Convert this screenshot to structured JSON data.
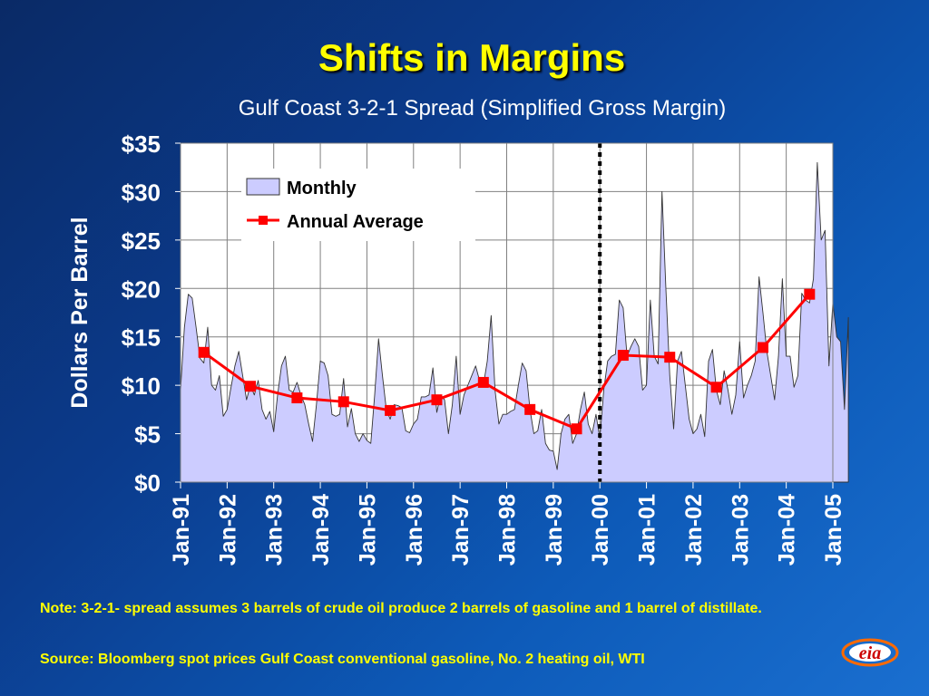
{
  "slide": {
    "title": "Shifts in Margins",
    "subtitle": "Gulf Coast 3-2-1 Spread (Simplified Gross Margin)",
    "note": "Note: 3-2-1- spread assumes 3 barrels of crude oil produce 2 barrels of gasoline and 1 barrel of distillate.",
    "source": "Source: Bloomberg spot prices Gulf Coast conventional gasoline, No. 2 heating oil, WTI",
    "logo_text": "eia"
  },
  "colors": {
    "background": "#0b3b8c",
    "title": "#ffff00",
    "area_fill": "#ccccff",
    "annual_line": "#ff0000",
    "divider": "#000000"
  },
  "chart_data": {
    "type": "area",
    "ylabel": "Dollars Per Barrel",
    "ylim": [
      0,
      35
    ],
    "yticks": [
      0,
      5,
      10,
      15,
      20,
      25,
      30,
      35
    ],
    "ytick_labels": [
      "$0",
      "$5",
      "$10",
      "$15",
      "$20",
      "$25",
      "$30",
      "$35"
    ],
    "xticks": [
      "Jan-91",
      "Jan-92",
      "Jan-93",
      "Jan-94",
      "Jan-95",
      "Jan-96",
      "Jan-97",
      "Jan-98",
      "Jan-99",
      "Jan-00",
      "Jan-01",
      "Jan-02",
      "Jan-03",
      "Jan-04",
      "Jan-05"
    ],
    "grid": true,
    "legend_position": "top-left",
    "divider_at": "Jan-00",
    "series": [
      {
        "name": "Monthly",
        "type": "area",
        "start": "Jan-91",
        "values": [
          9.5,
          16,
          19.4,
          19,
          16,
          12.8,
          12.3,
          16,
          10,
          9.5,
          11,
          6.8,
          7.5,
          9.8,
          12,
          13.5,
          11,
          8.5,
          10,
          9,
          10.5,
          7.5,
          6.5,
          7.3,
          5.2,
          9,
          12,
          13,
          9.5,
          9.3,
          10.3,
          9,
          8,
          6,
          4.2,
          8,
          12.5,
          12.3,
          11,
          7,
          6.8,
          7,
          10.7,
          5.7,
          7.6,
          5,
          4.2,
          5,
          4.3,
          4,
          9,
          14.8,
          11,
          7.5,
          6.5,
          8,
          7.9,
          7.7,
          5.3,
          5.1,
          6,
          6.5,
          8.8,
          8.8,
          9,
          11.8,
          7.2,
          9,
          8.5,
          5,
          8,
          13,
          7,
          9,
          10,
          11,
          12,
          10.5,
          10,
          12.5,
          17.2,
          9.5,
          6,
          7,
          7,
          7.3,
          7.5,
          10,
          12.3,
          11.5,
          7.5,
          5,
          5.3,
          7.5,
          4,
          3.3,
          3.2,
          1.3,
          5,
          6.5,
          7,
          4,
          5,
          7.5,
          9.3,
          6,
          5,
          7,
          4.5,
          9.5,
          12.5,
          13,
          13.2,
          18.8,
          18,
          13,
          14,
          14.8,
          14,
          9.5,
          10,
          18.8,
          13,
          12.2,
          30,
          20,
          11,
          5.5,
          12.5,
          13.5,
          10,
          6.5,
          5,
          5.5,
          7,
          4.7,
          12.5,
          13.7,
          9.5,
          8,
          11.5,
          9.5,
          7,
          9,
          14.5,
          8.7,
          10,
          11,
          12.5,
          21.2,
          17.5,
          13.5,
          11,
          8.5,
          13,
          21,
          13,
          13,
          9.8,
          11,
          19.5,
          18.8,
          18.5,
          21,
          33,
          25,
          26,
          12,
          18.5,
          15,
          14.5,
          7.5,
          17
        ]
      },
      {
        "name": "Annual Average",
        "type": "line",
        "points": [
          {
            "x": "Jul-91",
            "y": 13.4
          },
          {
            "x": "Jul-92",
            "y": 9.9
          },
          {
            "x": "Jul-93",
            "y": 8.7
          },
          {
            "x": "Jul-94",
            "y": 8.3
          },
          {
            "x": "Jul-95",
            "y": 7.4
          },
          {
            "x": "Jul-96",
            "y": 8.5
          },
          {
            "x": "Jul-97",
            "y": 10.3
          },
          {
            "x": "Jul-98",
            "y": 7.5
          },
          {
            "x": "Jul-99",
            "y": 5.5
          },
          {
            "x": "Jul-00",
            "y": 13.1
          },
          {
            "x": "Jul-01",
            "y": 12.9
          },
          {
            "x": "Jul-02",
            "y": 9.8
          },
          {
            "x": "Jul-03",
            "y": 13.9
          },
          {
            "x": "Jul-04",
            "y": 19.4
          }
        ]
      }
    ]
  }
}
